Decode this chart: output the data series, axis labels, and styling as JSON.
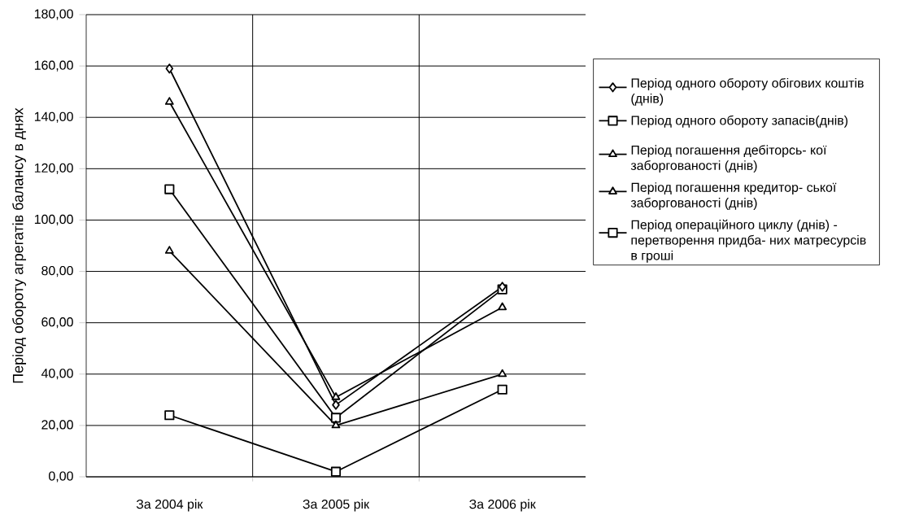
{
  "chart_data": {
    "type": "line",
    "ylabel": "Період обороту агрегатів балансу в днях",
    "categories": [
      "За 2004 рік",
      "За 2005 рік",
      "За 2006 рік"
    ],
    "ylim": [
      0,
      180
    ],
    "yticks": [
      {
        "value": 0,
        "label": "0,00"
      },
      {
        "value": 20,
        "label": "20,00"
      },
      {
        "value": 40,
        "label": "40,00"
      },
      {
        "value": 60,
        "label": "60,00"
      },
      {
        "value": 80,
        "label": "80,00"
      },
      {
        "value": 100,
        "label": "100,00"
      },
      {
        "value": 120,
        "label": "120,00"
      },
      {
        "value": 140,
        "label": "140,00"
      },
      {
        "value": 160,
        "label": "160,00"
      },
      {
        "value": 180,
        "label": "180,00"
      }
    ],
    "grid": true,
    "legend": "right",
    "line_style": "solid",
    "series": [
      {
        "name": "Період одного обороту обігових коштів (днів)",
        "color": "#000000",
        "marker": "diamond",
        "values": [
          159,
          28,
          74
        ]
      },
      {
        "name": "Період одного обороту запасів(днів)",
        "color": "#000000",
        "marker": "square",
        "values": [
          24,
          2,
          34
        ]
      },
      {
        "name": "Період погашення дебіторсь- кої заборгованості (днів)",
        "color": "#000000",
        "marker": "triangle",
        "values": [
          88,
          20,
          40
        ]
      },
      {
        "name": "Період погашення кредитор- ської заборгованості (днів)",
        "color": "#000000",
        "marker": "triangle",
        "values": [
          146,
          31,
          66
        ]
      },
      {
        "name": "Період операційного циклу (днів) - перетворення придба- них матресурсів в гроші",
        "color": "#000000",
        "marker": "square",
        "values": [
          112,
          23,
          73
        ]
      }
    ]
  }
}
